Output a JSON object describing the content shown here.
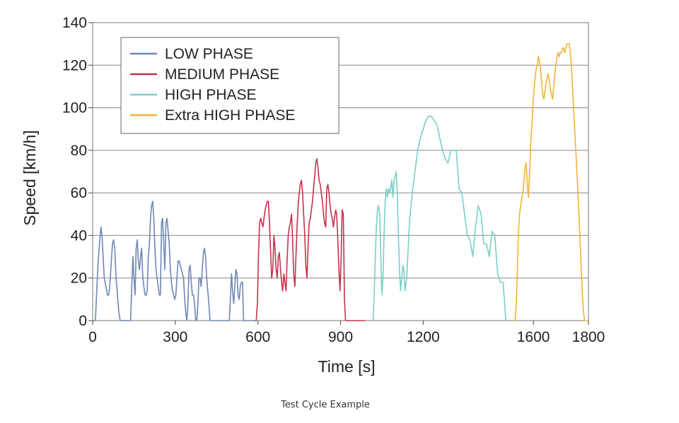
{
  "caption": "Test Cycle Example",
  "chart_data": {
    "type": "line",
    "title": "",
    "xlabel": "Time [s]",
    "ylabel": "Speed [km/h]",
    "xlim": [
      0,
      1800
    ],
    "ylim": [
      0,
      140
    ],
    "x_ticks": [
      0,
      300,
      600,
      900,
      1200,
      1600,
      1800
    ],
    "x_tick_labels": [
      "0",
      "300",
      "600",
      "900",
      "1200",
      "1600",
      "1800"
    ],
    "y_ticks": [
      0,
      20,
      40,
      60,
      80,
      100,
      120,
      140
    ],
    "y_tick_labels": [
      "0",
      "20",
      "40",
      "60",
      "80",
      "100",
      "120",
      "140"
    ],
    "grid": "horizontal",
    "legend_position": "top-left",
    "series": [
      {
        "name": "LOW PHASE",
        "color": "#6e87b5",
        "x": [
          0,
          10,
          14,
          20,
          26,
          30,
          34,
          38,
          42,
          48,
          54,
          58,
          62,
          68,
          72,
          76,
          80,
          85,
          90,
          95,
          100,
          120,
          138,
          142,
          146,
          150,
          154,
          158,
          162,
          166,
          170,
          174,
          178,
          182,
          186,
          190,
          194,
          198,
          202,
          206,
          210,
          214,
          218,
          222,
          226,
          230,
          234,
          238,
          242,
          246,
          250,
          254,
          258,
          262,
          266,
          270,
          274,
          278,
          282,
          286,
          290,
          294,
          298,
          302,
          306,
          310,
          314,
          318,
          322,
          326,
          330,
          334,
          338,
          342,
          346,
          350,
          354,
          358,
          362,
          366,
          370,
          374,
          378,
          382,
          386,
          390,
          394,
          398,
          402,
          406,
          410,
          414,
          418,
          422,
          426,
          430,
          434,
          440,
          496,
          500,
          504,
          508,
          512,
          516,
          520,
          524,
          528,
          532,
          536,
          540,
          544,
          548,
          554,
          556,
          590
        ],
        "y": [
          0,
          0,
          12,
          28,
          38,
          44,
          40,
          30,
          20,
          16,
          12,
          12,
          16,
          28,
          36,
          38,
          34,
          20,
          12,
          4,
          0,
          0,
          0,
          16,
          30,
          20,
          12,
          34,
          38,
          28,
          24,
          30,
          34,
          20,
          16,
          12,
          12,
          14,
          30,
          36,
          48,
          54,
          56,
          48,
          34,
          24,
          20,
          16,
          12,
          12,
          46,
          48,
          36,
          24,
          46,
          48,
          42,
          36,
          24,
          18,
          14,
          12,
          10,
          12,
          20,
          28,
          28,
          26,
          24,
          22,
          20,
          10,
          4,
          0,
          8,
          24,
          26,
          18,
          12,
          12,
          8,
          0,
          0,
          8,
          20,
          20,
          16,
          24,
          32,
          34,
          30,
          20,
          14,
          8,
          0,
          0,
          0,
          0,
          0,
          10,
          22,
          14,
          8,
          16,
          24,
          22,
          12,
          10,
          16,
          18,
          18,
          0,
          0,
          0,
          0
        ]
      },
      {
        "name": "MEDIUM PHASE",
        "color": "#c8304b",
        "x": [
          590,
          594,
          598,
          602,
          606,
          610,
          614,
          618,
          622,
          626,
          630,
          634,
          638,
          642,
          646,
          650,
          654,
          658,
          662,
          666,
          670,
          674,
          678,
          682,
          686,
          690,
          694,
          698,
          702,
          706,
          710,
          714,
          718,
          722,
          726,
          730,
          734,
          738,
          742,
          746,
          750,
          754,
          758,
          762,
          766,
          770,
          774,
          778,
          782,
          786,
          790,
          794,
          798,
          802,
          806,
          810,
          814,
          818,
          822,
          826,
          830,
          834,
          838,
          842,
          846,
          850,
          854,
          858,
          862,
          866,
          870,
          874,
          878,
          882,
          886,
          890,
          894,
          898,
          902,
          906,
          910,
          914,
          918,
          922,
          926,
          930,
          934,
          938,
          942,
          946,
          950,
          954,
          958,
          962,
          966,
          970,
          974,
          978,
          982,
          986,
          990
        ],
        "y": [
          0,
          0,
          8,
          30,
          46,
          48,
          46,
          44,
          48,
          52,
          54,
          56,
          56,
          46,
          32,
          20,
          24,
          40,
          34,
          24,
          20,
          30,
          32,
          24,
          18,
          14,
          22,
          18,
          14,
          28,
          40,
          44,
          46,
          50,
          38,
          22,
          16,
          30,
          44,
          54,
          60,
          64,
          66,
          60,
          50,
          40,
          26,
          20,
          34,
          46,
          48,
          52,
          56,
          62,
          68,
          74,
          76,
          72,
          66,
          64,
          60,
          56,
          50,
          46,
          44,
          62,
          64,
          60,
          54,
          50,
          48,
          44,
          48,
          52,
          50,
          38,
          24,
          14,
          30,
          52,
          50,
          10,
          0,
          0,
          0,
          0,
          0,
          0,
          0,
          0,
          0,
          0,
          0,
          0,
          0,
          0,
          0,
          0,
          0,
          0,
          0
        ]
      },
      {
        "name": "HIGH PHASE",
        "color": "#79cfc5",
        "x": [
          1018,
          1022,
          1026,
          1030,
          1034,
          1038,
          1042,
          1046,
          1050,
          1054,
          1058,
          1062,
          1066,
          1070,
          1074,
          1078,
          1082,
          1086,
          1090,
          1094,
          1098,
          1102,
          1106,
          1110,
          1114,
          1118,
          1122,
          1126,
          1130,
          1134,
          1140,
          1150,
          1160,
          1170,
          1180,
          1190,
          1200,
          1210,
          1220,
          1230,
          1240,
          1250,
          1260,
          1270,
          1280,
          1290,
          1300,
          1310,
          1320,
          1330,
          1340,
          1350,
          1360,
          1370,
          1380,
          1390,
          1400,
          1410,
          1420,
          1430,
          1440,
          1450,
          1460,
          1470,
          1480,
          1490,
          1500
        ],
        "y": [
          0,
          12,
          30,
          44,
          52,
          54,
          50,
          30,
          12,
          20,
          40,
          56,
          62,
          58,
          62,
          60,
          62,
          66,
          58,
          66,
          68,
          70,
          60,
          40,
          24,
          14,
          20,
          26,
          24,
          14,
          20,
          46,
          60,
          70,
          80,
          86,
          90,
          94,
          96,
          96,
          94,
          92,
          86,
          80,
          76,
          74,
          80,
          80,
          80,
          62,
          60,
          50,
          40,
          38,
          30,
          44,
          54,
          50,
          36,
          36,
          30,
          42,
          40,
          22,
          18,
          18,
          0
        ]
      },
      {
        "name": "Extra HIGH PHASE",
        "color": "#f1b338",
        "x": [
          1530,
          1534,
          1538,
          1542,
          1546,
          1550,
          1554,
          1558,
          1562,
          1566,
          1570,
          1574,
          1578,
          1582,
          1586,
          1590,
          1594,
          1598,
          1602,
          1606,
          1610,
          1614,
          1618,
          1622,
          1626,
          1630,
          1634,
          1638,
          1642,
          1646,
          1650,
          1654,
          1658,
          1662,
          1666,
          1670,
          1674,
          1678,
          1682,
          1686,
          1690,
          1694,
          1698,
          1702,
          1706,
          1710,
          1714,
          1718,
          1722,
          1726,
          1730,
          1734,
          1738,
          1742,
          1746,
          1750,
          1754,
          1758,
          1762,
          1766,
          1770,
          1774,
          1778,
          1782,
          1786,
          1790,
          1794,
          1798
        ],
        "y": [
          0,
          0,
          8,
          24,
          42,
          50,
          54,
          58,
          60,
          66,
          72,
          74,
          64,
          58,
          70,
          82,
          90,
          100,
          108,
          114,
          118,
          120,
          124,
          122,
          118,
          112,
          106,
          104,
          108,
          112,
          114,
          116,
          112,
          108,
          106,
          104,
          110,
          116,
          120,
          124,
          126,
          124,
          126,
          126,
          128,
          128,
          126,
          128,
          130,
          130,
          130,
          126,
          120,
          110,
          100,
          90,
          80,
          70,
          60,
          48,
          36,
          24,
          12,
          4,
          0,
          0,
          0,
          0
        ]
      }
    ]
  }
}
